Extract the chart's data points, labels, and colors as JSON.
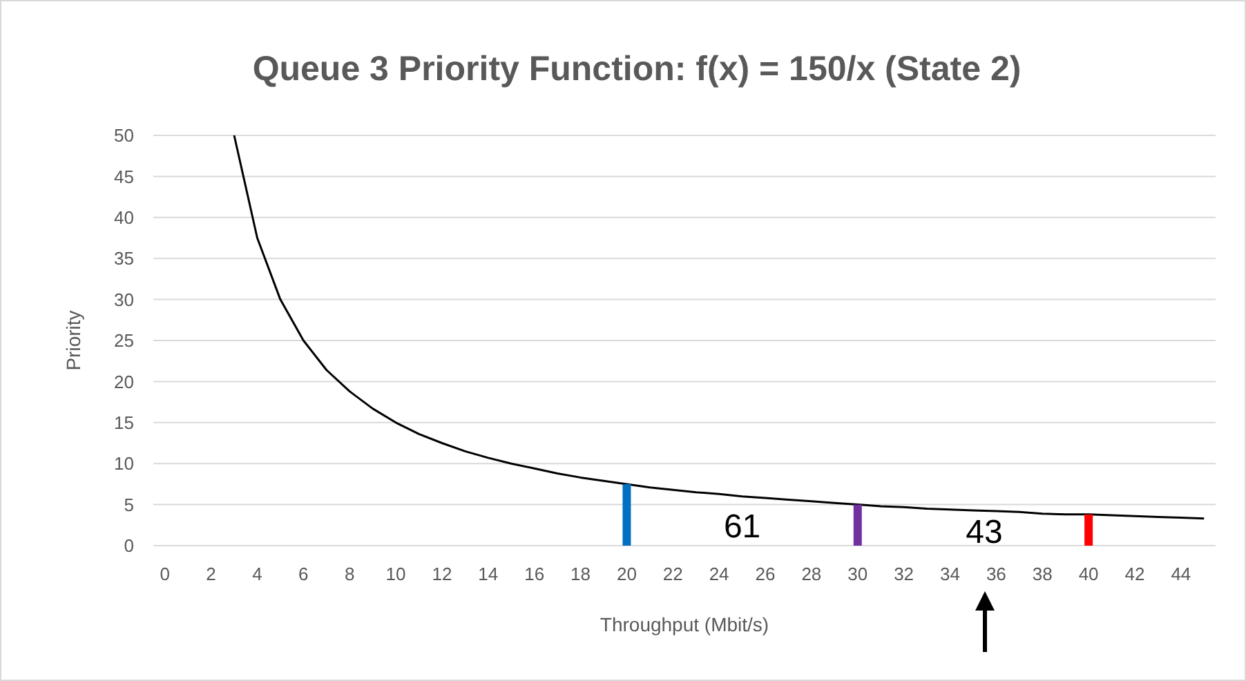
{
  "chart_data": {
    "type": "line",
    "title": "Queue 3 Priority Function: f(x) = 150/x (State 2)",
    "xlabel": "Throughput (Mbit/s)",
    "ylabel": "Priority",
    "xlim": [
      -0.5,
      45.5
    ],
    "xticks": [
      0,
      2,
      4,
      6,
      8,
      10,
      12,
      14,
      16,
      18,
      20,
      22,
      24,
      26,
      28,
      30,
      32,
      34,
      36,
      38,
      40,
      42,
      44
    ],
    "ylim": [
      0,
      50
    ],
    "yticks": [
      0,
      5,
      10,
      15,
      20,
      25,
      30,
      35,
      40,
      45,
      50
    ],
    "grid": "y",
    "marker": "none",
    "line_style": "solid",
    "series": [
      {
        "color": "#000000",
        "x": [
          3,
          4,
          5,
          6,
          7,
          8,
          9,
          10,
          11,
          12,
          13,
          14,
          15,
          16,
          17,
          18,
          19,
          20,
          21,
          22,
          23,
          24,
          25,
          26,
          27,
          28,
          29,
          30,
          31,
          32,
          33,
          34,
          35,
          36,
          37,
          38,
          39,
          40,
          41,
          42,
          43,
          44,
          45
        ],
        "values": [
          50,
          37.5,
          30,
          25,
          21.4,
          18.8,
          16.7,
          15,
          13.6,
          12.5,
          11.5,
          10.7,
          10,
          9.4,
          8.8,
          8.3,
          7.9,
          7.5,
          7.1,
          6.8,
          6.5,
          6.3,
          6,
          5.8,
          5.6,
          5.4,
          5.2,
          5,
          4.8,
          4.7,
          4.5,
          4.4,
          4.3,
          4.2,
          4.1,
          3.9,
          3.8,
          3.8,
          3.7,
          3.6,
          3.5,
          3.4,
          3.3
        ]
      },
      {
        "type": "bar",
        "x": [
          20,
          30,
          40
        ],
        "values": [
          7.5,
          5,
          3.8
        ],
        "colors": [
          "#0070c0",
          "#7030a0",
          "#ff0000"
        ]
      }
    ],
    "annotations": [
      "61",
      "43"
    ]
  }
}
